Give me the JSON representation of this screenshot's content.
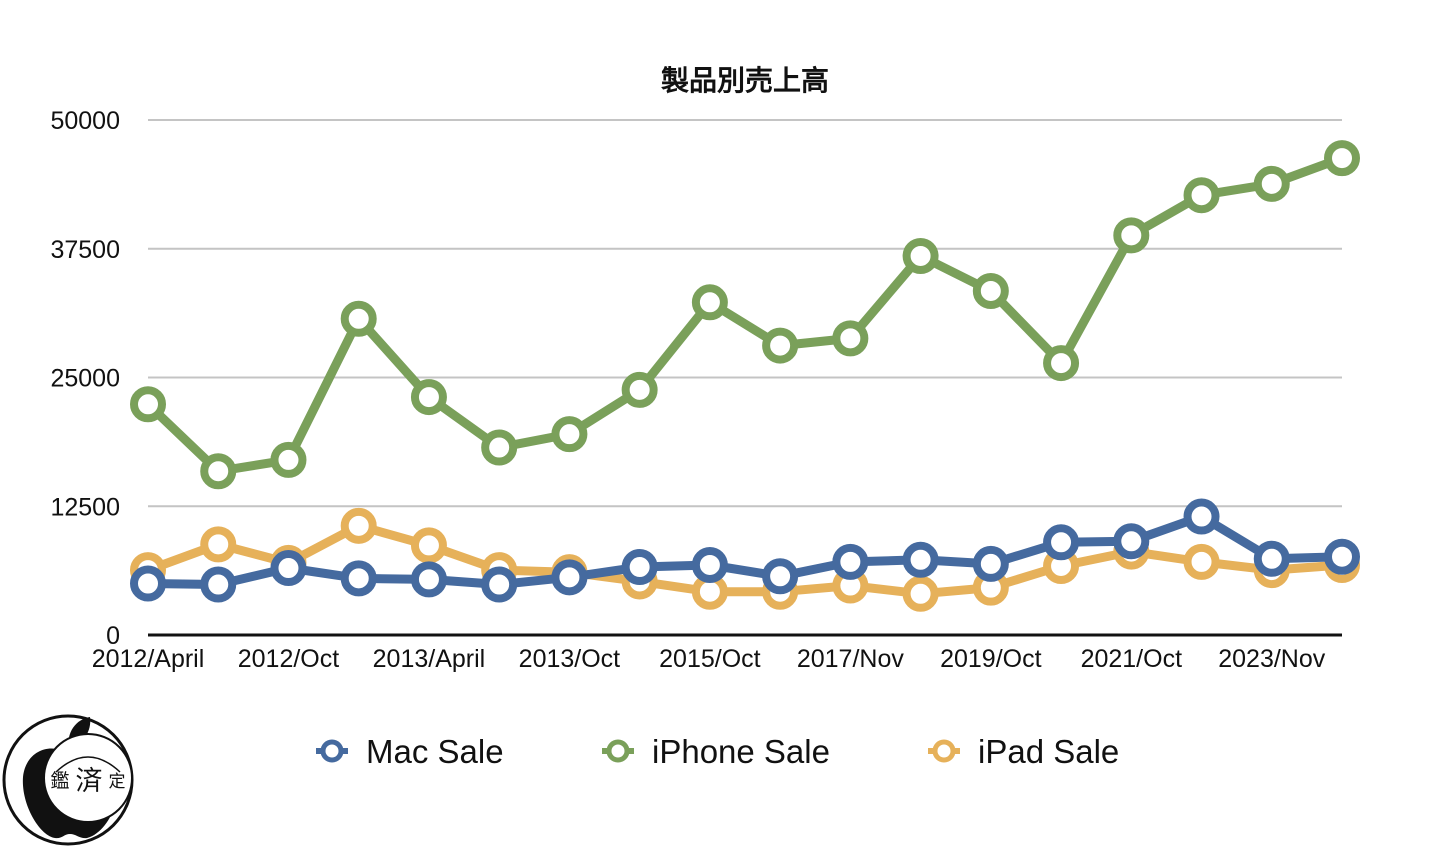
{
  "chart_data": {
    "type": "line",
    "title": "製品別売上高",
    "xlabel": "",
    "ylabel": "",
    "ylim": [
      0,
      50000
    ],
    "yticks": [
      0,
      12500,
      25000,
      37500,
      50000
    ],
    "x_tick_labels": [
      "2012/April",
      "2012/Oct",
      "2013/April",
      "2013/Oct",
      "2015/Oct",
      "2017/Nov",
      "2019/Oct",
      "2021/Oct",
      "2023/Nov"
    ],
    "point_count": 18,
    "grid": true,
    "legend_position": "bottom",
    "series": [
      {
        "name": "Mac Sale",
        "color": "#456a9f",
        "values": [
          5000,
          4900,
          6500,
          5500,
          5400,
          4900,
          5600,
          6600,
          6800,
          5700,
          7100,
          7300,
          6900,
          9000,
          9100,
          11500,
          7400,
          7600
        ]
      },
      {
        "name": "iPhone Sale",
        "color": "#7aa05a",
        "values": [
          22400,
          15900,
          17000,
          30700,
          23100,
          18200,
          19500,
          23800,
          32300,
          28100,
          28800,
          36800,
          33400,
          26400,
          38800,
          42700,
          43800,
          46300
        ]
      },
      {
        "name": "iPad Sale",
        "color": "#e6b15a",
        "values": [
          6300,
          8800,
          7000,
          10600,
          8700,
          6300,
          6100,
          5200,
          4200,
          4200,
          4800,
          4000,
          4600,
          6700,
          8100,
          7100,
          6300,
          6800
        ]
      }
    ]
  },
  "watermark": {
    "text_chars": [
      "鑑",
      "済",
      "定"
    ],
    "icon": "apple-logo-icon"
  }
}
